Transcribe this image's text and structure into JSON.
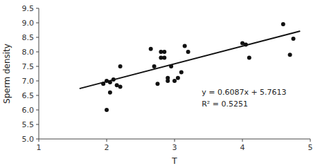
{
  "chart_data": {
    "type": "scatter",
    "xlabel": "T",
    "ylabel": "Sperm density",
    "series": [
      {
        "type": "scatter",
        "color": "#111111",
        "x": [
          1.95,
          2.0,
          2.05,
          2.1,
          2.15,
          2.2,
          2.2,
          2.05,
          2.0,
          2.65,
          2.7,
          2.75,
          2.8,
          2.8,
          2.85,
          2.85,
          2.9,
          2.9,
          2.95,
          3.0,
          3.05,
          3.1,
          3.15,
          3.2,
          4.0,
          4.05,
          4.1,
          4.6,
          4.7,
          4.75
        ],
        "values": [
          6.9,
          7.0,
          6.95,
          7.05,
          6.85,
          6.8,
          7.5,
          6.6,
          6.0,
          8.1,
          7.5,
          6.9,
          8.0,
          7.8,
          8.0,
          7.8,
          7.0,
          7.1,
          7.5,
          7.0,
          7.1,
          7.3,
          8.2,
          8.0,
          8.3,
          8.25,
          7.8,
          8.95,
          7.9,
          8.45
        ]
      },
      {
        "type": "line",
        "color": "#111111",
        "x": [
          1.6,
          4.85
        ],
        "values": [
          6.73522,
          8.713495
        ]
      }
    ],
    "annotations": [
      "y = 0.6087x + 5.7613",
      "R² = 0.5251"
    ],
    "xlim": [
      1,
      5
    ],
    "ylim": [
      5,
      9.5
    ],
    "xticks": [
      1,
      2,
      3,
      4,
      5
    ],
    "yticks": [
      {
        "value": 5,
        "label": "5.0"
      },
      {
        "value": 5.5,
        "label": "5.5"
      },
      {
        "value": 6,
        "label": "6.0"
      },
      {
        "value": 6.5,
        "label": "6.5"
      },
      {
        "value": 7,
        "label": "7.0"
      },
      {
        "value": 7.5,
        "label": "7.5"
      },
      {
        "value": 8,
        "label": "8.0"
      },
      {
        "value": 8.5,
        "label": "8.5"
      },
      {
        "value": 9,
        "label": "9.0"
      },
      {
        "value": 9.5,
        "label": "9.5"
      }
    ],
    "grid": false
  }
}
